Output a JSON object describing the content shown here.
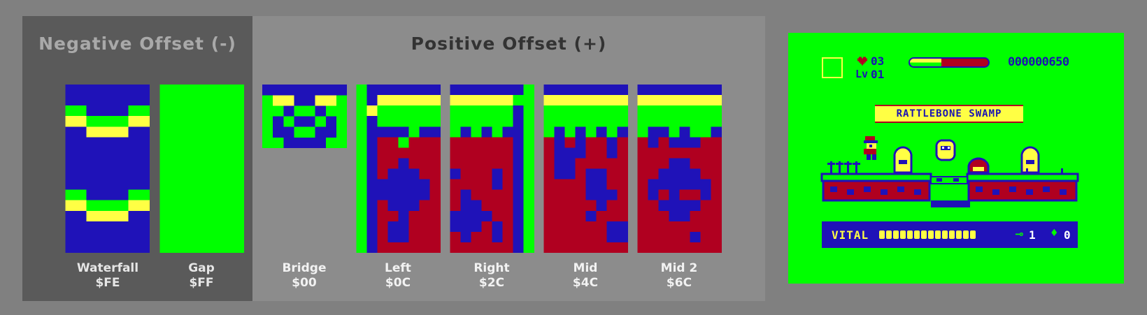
{
  "colors": {
    "blue": "#1f12b8",
    "green": "#00ff00",
    "yellow": "#ffff44",
    "red": "#b00020"
  },
  "negative_panel": {
    "title": "Negative Offset (-)",
    "tiles": [
      {
        "name": "Waterfall",
        "offset": "$FE"
      },
      {
        "name": "Gap",
        "offset": "$FF"
      }
    ]
  },
  "positive_panel": {
    "title": "Positive Offset (+)",
    "tiles": [
      {
        "name": "Bridge",
        "offset": "$00"
      },
      {
        "name": "Left",
        "offset": "$0C"
      },
      {
        "name": "Right",
        "offset": "$2C"
      },
      {
        "name": "Mid",
        "offset": "$4C"
      },
      {
        "name": "Mid 2",
        "offset": "$6C"
      }
    ]
  },
  "game": {
    "lives": "03",
    "level": "01",
    "level_prefix": "Lv",
    "score": "000000650",
    "stage_name": "RATTLEBONE SWAMP",
    "vital_label": "VITAL",
    "vital_pips": 14,
    "vital_fraction": 1.0,
    "health_bar_fraction": 0.4,
    "keys": "1",
    "gems": "0",
    "icons": [
      "heart-icon",
      "key-icon",
      "gem-icon"
    ]
  }
}
